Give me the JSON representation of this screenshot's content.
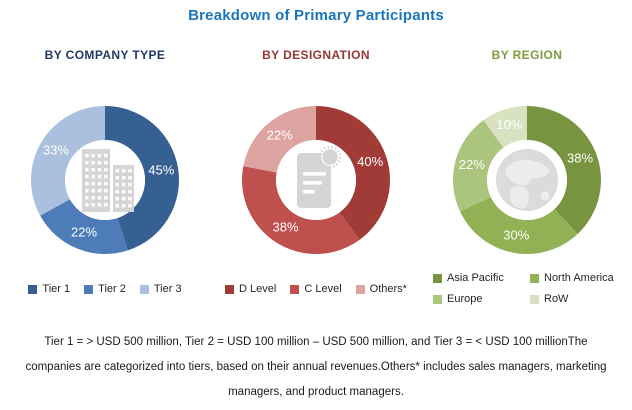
{
  "title": "Breakdown of Primary Participants",
  "title_color": "#1B75BC",
  "footnote": "Tier 1 = > USD 500 million, Tier 2 = USD 100 million – USD 500 million, and Tier 3 = < USD 100 millionThe companies are categorized into tiers, based on their annual revenues.Others* includes sales managers, marketing managers, and product managers.",
  "icon_color": "#D5D5D5",
  "chart_data": [
    {
      "type": "pie",
      "subtype": "donut",
      "title": "BY COMPANY TYPE",
      "title_color": "#1F3864",
      "labels": [
        "Tier 1",
        "Tier 2",
        "Tier 3"
      ],
      "values": [
        45,
        22,
        33
      ],
      "value_labels": [
        "45%",
        "22%",
        "33%"
      ],
      "colors": [
        "#376092",
        "#4E7CB8",
        "#ABC0DE"
      ],
      "start_angle_deg": 0,
      "direction": "clockwise",
      "center_icon": "buildings-icon",
      "legend_position": "bottom-row"
    },
    {
      "type": "pie",
      "subtype": "donut",
      "title": "BY DESIGNATION",
      "title_color": "#953735",
      "labels": [
        "D Level",
        "C Level",
        "Others*"
      ],
      "values": [
        40,
        38,
        22
      ],
      "value_labels": [
        "40%",
        "38%",
        "22%"
      ],
      "colors": [
        "#A03B38",
        "#C0504D",
        "#DCA3A1"
      ],
      "start_angle_deg": 0,
      "direction": "clockwise",
      "center_icon": "certificate-icon",
      "legend_position": "bottom-row"
    },
    {
      "type": "pie",
      "subtype": "donut",
      "title": "BY REGION",
      "title_color": "#7E9C3F",
      "labels": [
        "Asia Pacific",
        "North America",
        "Europe",
        "RoW"
      ],
      "values": [
        38,
        30,
        22,
        10
      ],
      "value_labels": [
        "38%",
        "30%",
        "22%",
        "10%"
      ],
      "colors": [
        "#789440",
        "#92B155",
        "#ABC47E",
        "#D8E2C0"
      ],
      "start_angle_deg": 0,
      "direction": "clockwise",
      "center_icon": "globe-icon",
      "legend_position": "bottom-grid"
    }
  ]
}
